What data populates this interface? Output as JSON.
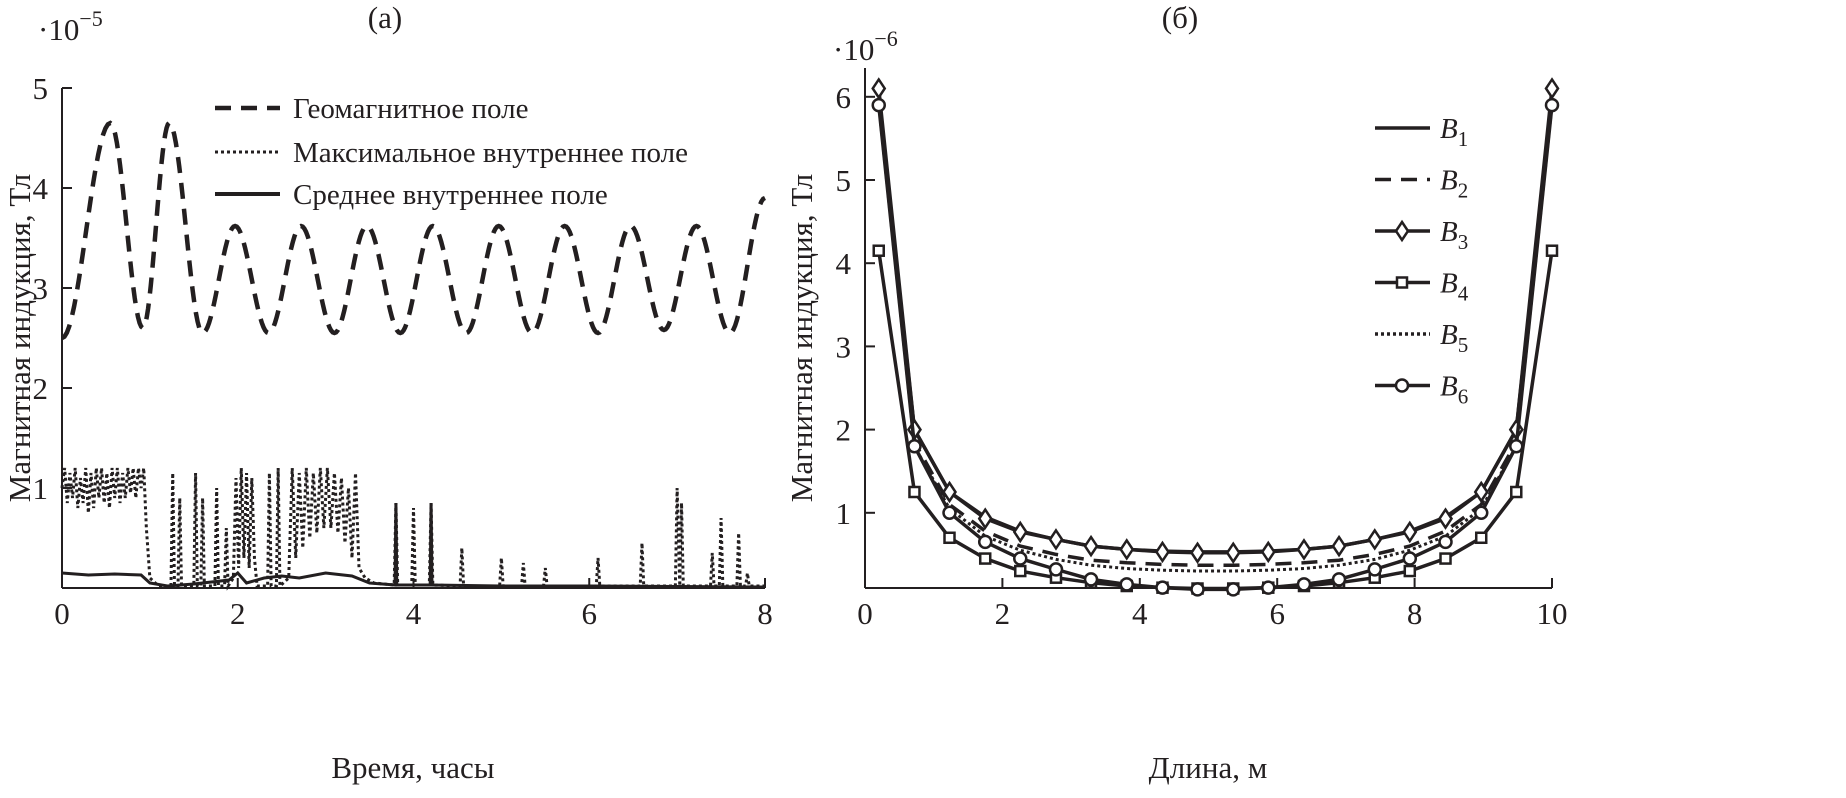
{
  "chart_data": [
    {
      "type": "line",
      "panel_label": "(a)",
      "multiplier": "·10",
      "multiplier_exp": "−5",
      "xlabel": "Время, часы",
      "ylabel": "Магнитная индукция, Тл",
      "xlim": [
        0,
        8
      ],
      "ylim": [
        0,
        5
      ],
      "xticks": [
        "0",
        "2",
        "4",
        "6",
        "8"
      ],
      "yticks": [
        "1",
        "2",
        "3",
        "4",
        "5"
      ],
      "grid": false,
      "legend_position": "top-right",
      "series": [
        {
          "name": "Геомагнитное поле",
          "style": "dashed",
          "extrema": [
            [
              0,
              2.5
            ],
            [
              0.55,
              4.65
            ],
            [
              0.92,
              2.6
            ],
            [
              1.22,
              4.65
            ],
            [
              1.6,
              2.55
            ],
            [
              1.97,
              3.62
            ],
            [
              2.35,
              2.55
            ],
            [
              2.72,
              3.62
            ],
            [
              3.1,
              2.55
            ],
            [
              3.47,
              3.62
            ],
            [
              3.85,
              2.55
            ],
            [
              4.22,
              3.62
            ],
            [
              4.6,
              2.55
            ],
            [
              4.97,
              3.62
            ],
            [
              5.35,
              2.55
            ],
            [
              5.72,
              3.62
            ],
            [
              6.1,
              2.55
            ],
            [
              6.47,
              3.62
            ],
            [
              6.85,
              2.58
            ],
            [
              7.22,
              3.62
            ],
            [
              7.6,
              2.55
            ],
            [
              8,
              3.9
            ]
          ]
        },
        {
          "name": "Максимальное внутреннее поле",
          "style": "dotted",
          "points": [
            [
              0,
              1.0
            ],
            [
              0.03,
              1.2
            ],
            [
              0.06,
              0.85
            ],
            [
              0.09,
              1.15
            ],
            [
              0.12,
              0.9
            ],
            [
              0.15,
              1.2
            ],
            [
              0.18,
              0.8
            ],
            [
              0.21,
              1.1
            ],
            [
              0.24,
              0.85
            ],
            [
              0.27,
              1.2
            ],
            [
              0.3,
              0.75
            ],
            [
              0.33,
              1.15
            ],
            [
              0.36,
              0.8
            ],
            [
              0.39,
              1.2
            ],
            [
              0.42,
              0.9
            ],
            [
              0.45,
              1.2
            ],
            [
              0.48,
              0.85
            ],
            [
              0.51,
              1.15
            ],
            [
              0.54,
              0.8
            ],
            [
              0.57,
              1.2
            ],
            [
              0.6,
              0.9
            ],
            [
              0.63,
              1.2
            ],
            [
              0.66,
              0.85
            ],
            [
              0.69,
              1.15
            ],
            [
              0.72,
              0.9
            ],
            [
              0.75,
              1.2
            ],
            [
              0.78,
              0.95
            ],
            [
              0.81,
              1.2
            ],
            [
              0.84,
              0.9
            ],
            [
              0.87,
              1.2
            ],
            [
              0.9,
              1.0
            ],
            [
              0.93,
              1.2
            ],
            [
              0.96,
              0.6
            ],
            [
              1.0,
              0.1
            ],
            [
              1.1,
              0.02
            ],
            [
              1.24,
              0.02
            ],
            [
              1.26,
              1.15
            ],
            [
              1.28,
              0.02
            ],
            [
              1.32,
              0.02
            ],
            [
              1.34,
              0.9
            ],
            [
              1.36,
              0.02
            ],
            [
              1.5,
              0.02
            ],
            [
              1.52,
              1.15
            ],
            [
              1.54,
              0.02
            ],
            [
              1.58,
              0.02
            ],
            [
              1.6,
              0.9
            ],
            [
              1.62,
              0.02
            ],
            [
              1.74,
              0.02
            ],
            [
              1.76,
              1.0
            ],
            [
              1.78,
              0.02
            ],
            [
              1.85,
              0.02
            ],
            [
              1.87,
              0.6
            ],
            [
              1.89,
              0.02
            ],
            [
              1.95,
              0.1
            ],
            [
              1.98,
              1.1
            ],
            [
              2.01,
              0.2
            ],
            [
              2.04,
              1.2
            ],
            [
              2.07,
              0.3
            ],
            [
              2.1,
              1.15
            ],
            [
              2.13,
              0.2
            ],
            [
              2.16,
              1.1
            ],
            [
              2.19,
              0.3
            ],
            [
              2.22,
              0.02
            ],
            [
              2.34,
              0.02
            ],
            [
              2.36,
              1.15
            ],
            [
              2.38,
              0.02
            ],
            [
              2.44,
              0.02
            ],
            [
              2.46,
              1.2
            ],
            [
              2.48,
              0.02
            ],
            [
              2.58,
              0.1
            ],
            [
              2.62,
              1.2
            ],
            [
              2.66,
              0.3
            ],
            [
              2.7,
              1.15
            ],
            [
              2.74,
              0.4
            ],
            [
              2.78,
              1.2
            ],
            [
              2.82,
              0.5
            ],
            [
              2.86,
              1.15
            ],
            [
              2.9,
              0.55
            ],
            [
              2.94,
              1.2
            ],
            [
              2.98,
              0.6
            ],
            [
              3.02,
              1.2
            ],
            [
              3.06,
              0.6
            ],
            [
              3.1,
              1.15
            ],
            [
              3.14,
              0.55
            ],
            [
              3.18,
              1.1
            ],
            [
              3.22,
              0.45
            ],
            [
              3.26,
              1.0
            ],
            [
              3.3,
              0.3
            ],
            [
              3.34,
              1.15
            ],
            [
              3.38,
              0.2
            ],
            [
              3.45,
              0.1
            ],
            [
              3.55,
              0.05
            ],
            [
              3.78,
              0.03
            ],
            [
              3.8,
              0.85
            ],
            [
              3.82,
              0.03
            ],
            [
              3.98,
              0.03
            ],
            [
              4.0,
              0.8
            ],
            [
              4.02,
              0.03
            ],
            [
              4.18,
              0.03
            ],
            [
              4.2,
              0.85
            ],
            [
              4.22,
              0.03
            ],
            [
              4.53,
              0.02
            ],
            [
              4.55,
              0.4
            ],
            [
              4.57,
              0.02
            ],
            [
              4.98,
              0.02
            ],
            [
              5.0,
              0.3
            ],
            [
              5.02,
              0.02
            ],
            [
              5.23,
              0.02
            ],
            [
              5.25,
              0.25
            ],
            [
              5.27,
              0.02
            ],
            [
              5.48,
              0.02
            ],
            [
              5.5,
              0.2
            ],
            [
              5.52,
              0.02
            ],
            [
              6.08,
              0.02
            ],
            [
              6.1,
              0.3
            ],
            [
              6.12,
              0.02
            ],
            [
              6.58,
              0.02
            ],
            [
              6.6,
              0.45
            ],
            [
              6.62,
              0.02
            ],
            [
              6.98,
              0.02
            ],
            [
              7.0,
              1.0
            ],
            [
              7.03,
              0.02
            ],
            [
              7.05,
              0.85
            ],
            [
              7.07,
              0.02
            ],
            [
              7.38,
              0.02
            ],
            [
              7.4,
              0.35
            ],
            [
              7.42,
              0.02
            ],
            [
              7.48,
              0.02
            ],
            [
              7.5,
              0.7
            ],
            [
              7.52,
              0.02
            ],
            [
              7.68,
              0.02
            ],
            [
              7.7,
              0.55
            ],
            [
              7.72,
              0.02
            ],
            [
              7.78,
              0.02
            ],
            [
              7.8,
              0.15
            ],
            [
              7.82,
              0.02
            ],
            [
              8,
              0.02
            ]
          ]
        },
        {
          "name": "Среднее внутреннее поле",
          "style": "solid",
          "points": [
            [
              0,
              0.15
            ],
            [
              0.3,
              0.13
            ],
            [
              0.6,
              0.14
            ],
            [
              0.9,
              0.13
            ],
            [
              1.0,
              0.05
            ],
            [
              1.2,
              0.02
            ],
            [
              1.5,
              0.04
            ],
            [
              1.9,
              0.08
            ],
            [
              2.0,
              0.15
            ],
            [
              2.1,
              0.05
            ],
            [
              2.3,
              0.1
            ],
            [
              2.5,
              0.12
            ],
            [
              2.7,
              0.1
            ],
            [
              3.0,
              0.15
            ],
            [
              3.3,
              0.12
            ],
            [
              3.5,
              0.05
            ],
            [
              3.79,
              0.03
            ],
            [
              3.8,
              0.85
            ],
            [
              3.81,
              0.03
            ],
            [
              4.19,
              0.03
            ],
            [
              4.2,
              0.85
            ],
            [
              4.21,
              0.03
            ],
            [
              5,
              0.02
            ],
            [
              6,
              0.02
            ],
            [
              8,
              0.01
            ]
          ]
        }
      ]
    },
    {
      "type": "line",
      "panel_label": "(б)",
      "multiplier": "·10",
      "multiplier_exp": "−6",
      "xlabel": "Длина, м",
      "ylabel": "Магнитная индукция, Тл",
      "xlim": [
        0,
        10
      ],
      "ylim": [
        0,
        6.5
      ],
      "xticks": [
        "0",
        "2",
        "4",
        "6",
        "8",
        "10"
      ],
      "yticks": [
        "1",
        "2",
        "3",
        "4",
        "5",
        "6"
      ],
      "grid": false,
      "legend_position": "top-right",
      "x": [
        0.2,
        0.72,
        1.23,
        1.75,
        2.26,
        2.78,
        3.29,
        3.81,
        4.33,
        4.84,
        5.36,
        5.87,
        6.39,
        6.9,
        7.42,
        7.93,
        8.45,
        8.97,
        9.48,
        10.0
      ],
      "series": [
        {
          "name": "B",
          "sub": "1",
          "style": "solid",
          "marker": "none",
          "values": [
            5.95,
            2.0,
            1.25,
            0.95,
            0.78,
            0.68,
            0.6,
            0.56,
            0.54,
            0.53,
            0.53,
            0.54,
            0.56,
            0.6,
            0.68,
            0.78,
            0.95,
            1.25,
            2.0,
            5.95
          ]
        },
        {
          "name": "B",
          "sub": "2",
          "style": "dashed",
          "marker": "none",
          "values": [
            5.95,
            1.85,
            1.1,
            0.78,
            0.6,
            0.5,
            0.43,
            0.4,
            0.38,
            0.37,
            0.37,
            0.38,
            0.4,
            0.43,
            0.5,
            0.6,
            0.78,
            1.1,
            1.85,
            5.95
          ]
        },
        {
          "name": "B",
          "sub": "3",
          "style": "solid",
          "marker": "diamond",
          "values": [
            6.1,
            2.0,
            1.25,
            0.93,
            0.77,
            0.68,
            0.6,
            0.56,
            0.53,
            0.52,
            0.52,
            0.53,
            0.56,
            0.6,
            0.68,
            0.77,
            0.93,
            1.25,
            2.0,
            6.1
          ]
        },
        {
          "name": "B",
          "sub": "4",
          "style": "solid",
          "marker": "square",
          "values": [
            4.15,
            1.25,
            0.7,
            0.45,
            0.3,
            0.22,
            0.16,
            0.12,
            0.1,
            0.09,
            0.09,
            0.1,
            0.12,
            0.16,
            0.22,
            0.3,
            0.45,
            0.7,
            1.25,
            4.15
          ]
        },
        {
          "name": "B",
          "sub": "5",
          "style": "dotted",
          "marker": "none",
          "values": [
            5.9,
            1.8,
            1.05,
            0.72,
            0.55,
            0.44,
            0.37,
            0.33,
            0.31,
            0.3,
            0.3,
            0.31,
            0.33,
            0.37,
            0.44,
            0.55,
            0.72,
            1.05,
            1.8,
            5.9
          ]
        },
        {
          "name": "B",
          "sub": "6",
          "style": "solid",
          "marker": "circle",
          "values": [
            5.9,
            1.8,
            1.0,
            0.65,
            0.45,
            0.32,
            0.2,
            0.14,
            0.1,
            0.08,
            0.08,
            0.1,
            0.14,
            0.2,
            0.32,
            0.45,
            0.65,
            1.0,
            1.8,
            5.9
          ]
        }
      ]
    }
  ]
}
